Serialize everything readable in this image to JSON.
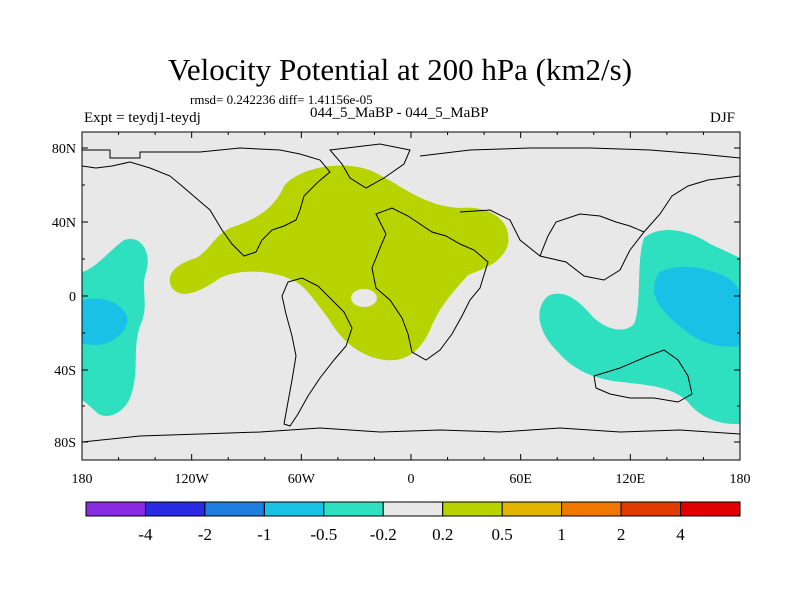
{
  "title": "Velocity Potential at 200 hPa (km2/s)",
  "stats": "rmsd= 0.242236 diff= 1.41156e-05",
  "experiment": "Expt = teydj1-teydj",
  "experiment_names": "044_5_MaBP - 044_5_MaBP",
  "season": "DJF",
  "lat_labels": [
    "80N",
    "40N",
    "0",
    "40S",
    "80S"
  ],
  "lon_labels": [
    "180",
    "120W",
    "60W",
    "0",
    "60E",
    "120E",
    "180"
  ],
  "colorbar": {
    "colors": [
      "#8a2be2",
      "#2a2ae0",
      "#1e7fe0",
      "#19c1e6",
      "#2ee0c0",
      "#e8e8e8",
      "#b7d400",
      "#e0b400",
      "#f07800",
      "#e03c00",
      "#e00000"
    ],
    "labels": [
      "-4",
      "-2",
      "-1",
      "-0.5",
      "-0.2",
      "0.2",
      "0.5",
      "1",
      "2",
      "4"
    ]
  },
  "map": {
    "background_color": "#e8e8e8",
    "regions": [
      {
        "name": "positive-anomaly-africa-europe-asia",
        "level": "0.2 to 0.5",
        "color": "#b7d400"
      },
      {
        "name": "negative-anomaly-west-pacific",
        "level": "-0.5 to -0.2",
        "color": "#2ee0c0"
      },
      {
        "name": "negative-anomaly-east-pacific",
        "level": "-0.5 to -0.2",
        "color": "#2ee0c0"
      },
      {
        "name": "negative-core-west-pacific",
        "level": "-1 to -0.5",
        "color": "#19c1e6"
      },
      {
        "name": "negative-core-east-pacific",
        "level": "-1 to -0.5",
        "color": "#19c1e6"
      }
    ]
  }
}
